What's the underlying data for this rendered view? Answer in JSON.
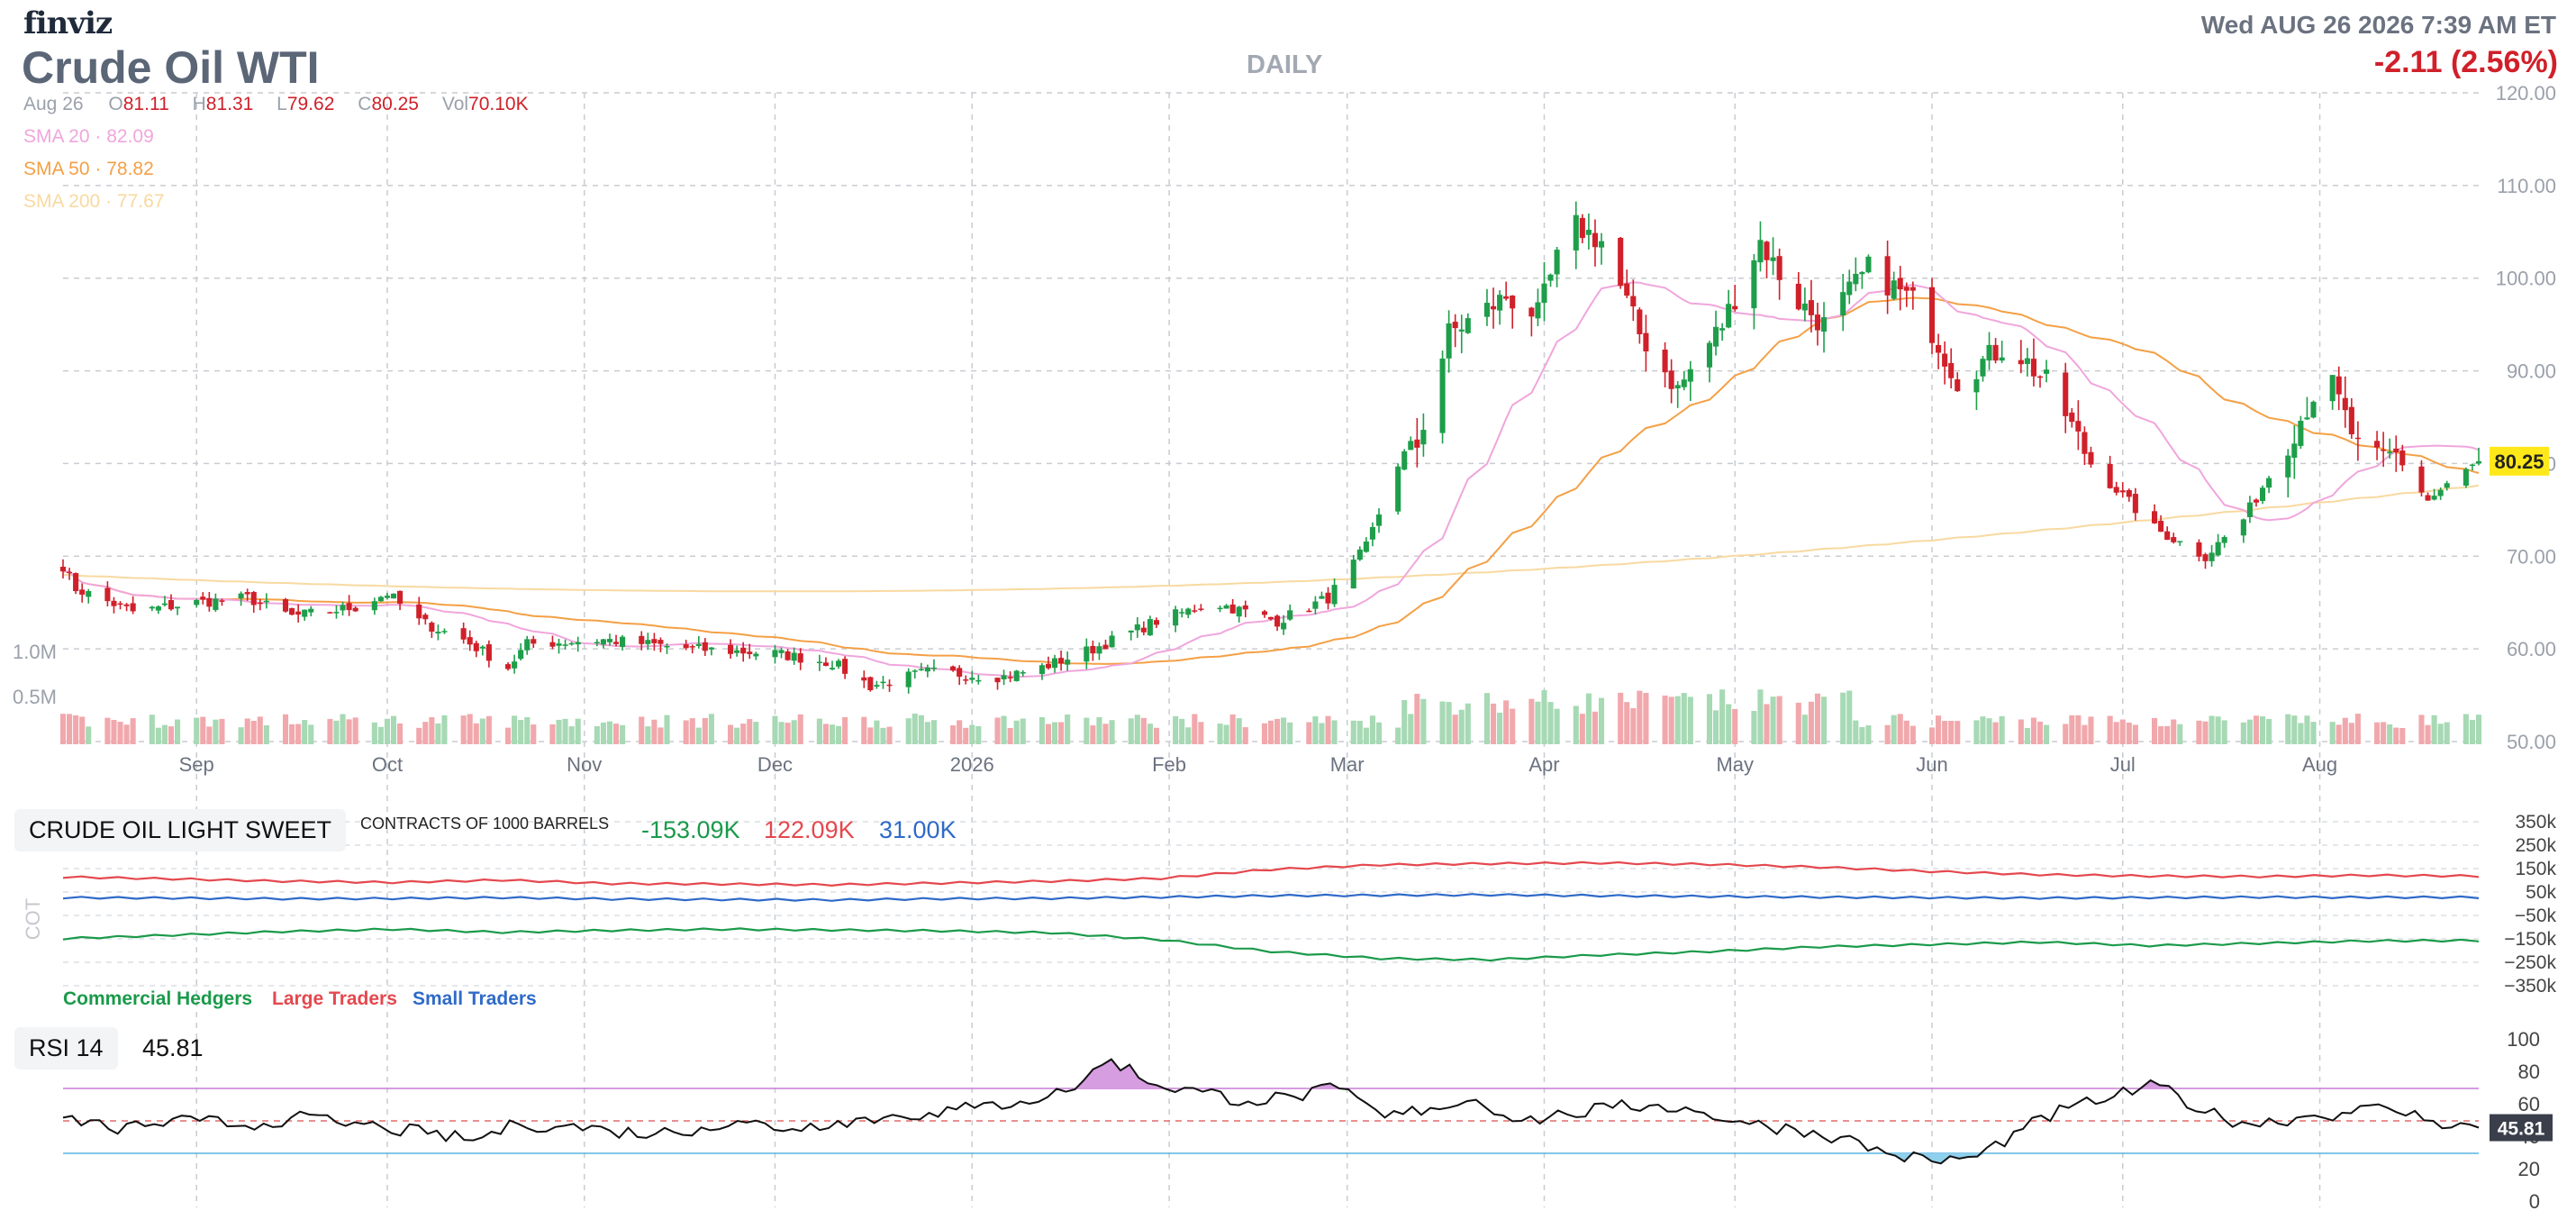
{
  "header": {
    "brand": "finviz",
    "title": "Crude Oil WTI",
    "period": "DAILY",
    "datetime": "Wed AUG 26 2026 7:39 AM ET",
    "change": "-2.11 (2.56%)"
  },
  "ohlc": {
    "date": "Aug 26",
    "open_key": "O",
    "open": "81.11",
    "high_key": "H",
    "high": "81.31",
    "low_key": "L",
    "low": "79.62",
    "close_key": "C",
    "close": "80.25",
    "vol_key": "Vol",
    "vol": "70.10K"
  },
  "sma": [
    {
      "label": "SMA 20",
      "value": "82.09",
      "color": "#f0a6dc"
    },
    {
      "label": "SMA 50",
      "value": "78.82",
      "color": "#f4a046"
    },
    {
      "label": "SMA 200",
      "value": "77.67",
      "color": "#f8d9a0"
    }
  ],
  "price_badge": "80.25",
  "cot": {
    "panel_label": "CRUDE OIL LIGHT SWEET",
    "contracts_label": "CONTRACTS OF 1000 BARRELS",
    "side_label": "COT",
    "commercial_value": "-153.09K",
    "large_value": "122.09K",
    "small_value": "31.00K",
    "legend": {
      "commercial": "Commercial Hedgers",
      "large": "Large Traders",
      "small": "Small Traders"
    },
    "colors": {
      "commercial": "#1a9a4a",
      "large": "#e4484e",
      "small": "#2f6ac8"
    }
  },
  "rsi": {
    "panel_label": "RSI 14",
    "value": "45.81",
    "badge": "45.81"
  },
  "colors": {
    "up": "#1e9e4a",
    "down": "#d0202a",
    "vol_up": "#a6d9b4",
    "vol_down": "#f1a8ac",
    "grid": "#c9ccd1",
    "badge_bg": "#ffe81a",
    "rsi_badge_bg": "#3a3f4b"
  },
  "chart_data": [
    {
      "type": "candlestick",
      "title": "Crude Oil WTI",
      "x_tick_labels": [
        "Sep",
        "Oct",
        "Nov",
        "Dec",
        "2026",
        "Feb",
        "Mar",
        "Apr",
        "May",
        "Jun",
        "Jul",
        "Aug"
      ],
      "y_tick_labels": [
        "120.00",
        "110.00",
        "100.00",
        "90.00",
        "80.00",
        "70.00",
        "60.00",
        "50.00"
      ],
      "ylim": [
        50,
        120
      ],
      "volume_tick_labels": [
        "1.0M",
        "0.5M"
      ],
      "grid": true,
      "anchors": [
        [
          "2025-08-11",
          69
        ],
        [
          "2025-08-13",
          66.5
        ],
        [
          "2025-08-22",
          64
        ],
        [
          "2025-09-01",
          65
        ],
        [
          "2025-09-09",
          65.5
        ],
        [
          "2025-09-16",
          63.5
        ],
        [
          "2025-09-26",
          64.5
        ],
        [
          "2025-10-01",
          66
        ],
        [
          "2025-10-06",
          63
        ],
        [
          "2025-10-13",
          61
        ],
        [
          "2025-10-20",
          58
        ],
        [
          "2025-10-23",
          60.5
        ],
        [
          "2025-11-04",
          61
        ],
        [
          "2025-11-18",
          60
        ],
        [
          "2025-12-01",
          59.5
        ],
        [
          "2025-12-10",
          58.5
        ],
        [
          "2025-12-16",
          56
        ],
        [
          "2025-12-25",
          57.5
        ],
        [
          "2026-01-06",
          57
        ],
        [
          "2026-01-12",
          58
        ],
        [
          "2026-01-20",
          60
        ],
        [
          "2026-01-30",
          63
        ],
        [
          "2026-02-08",
          65
        ],
        [
          "2026-02-18",
          63
        ],
        [
          "2026-02-26",
          65.5
        ],
        [
          "2026-03-04",
          71
        ],
        [
          "2026-03-09",
          80
        ],
        [
          "2026-03-12",
          82
        ],
        [
          "2026-03-17",
          94
        ],
        [
          "2026-03-26",
          98
        ],
        [
          "2026-03-31",
          96
        ],
        [
          "2026-04-05",
          106
        ],
        [
          "2026-04-10",
          104
        ],
        [
          "2026-04-16",
          94
        ],
        [
          "2026-04-22",
          88
        ],
        [
          "2026-04-29",
          95
        ],
        [
          "2026-05-05",
          104
        ],
        [
          "2026-05-10",
          98
        ],
        [
          "2026-05-15",
          95
        ],
        [
          "2026-05-22",
          101
        ],
        [
          "2026-05-30",
          97
        ],
        [
          "2026-06-05",
          89
        ],
        [
          "2026-06-13",
          93
        ],
        [
          "2026-06-20",
          88
        ],
        [
          "2026-06-26",
          80
        ],
        [
          "2026-07-06",
          73
        ],
        [
          "2026-07-14",
          70
        ],
        [
          "2026-07-20",
          74
        ],
        [
          "2026-07-26",
          81
        ],
        [
          "2026-08-02",
          90
        ],
        [
          "2026-08-08",
          80
        ],
        [
          "2026-08-13",
          81
        ],
        [
          "2026-08-18",
          76
        ],
        [
          "2026-08-26",
          80.25
        ]
      ],
      "sma_series": [
        {
          "name": "SMA 20",
          "last": 82.09
        },
        {
          "name": "SMA 50",
          "last": 78.82
        },
        {
          "name": "SMA 200",
          "last": 77.67
        }
      ]
    },
    {
      "type": "line",
      "title": "CRUDE OIL LIGHT SWEET",
      "y_tick_labels": [
        "350k",
        "250k",
        "150k",
        "50k",
        "−50k",
        "−150k",
        "−250k",
        "−350k"
      ],
      "ylim": [
        -350,
        350
      ],
      "series": [
        {
          "name": "Large Traders",
          "values": [
            118,
            110,
            100,
            95,
            105,
            90,
            88,
            85,
            92,
            100,
            112,
            150,
            170,
            175,
            178,
            172,
            160,
            142,
            128,
            122,
            120,
            125,
            122
          ]
        },
        {
          "name": "Small Traders",
          "values": [
            30,
            28,
            25,
            26,
            30,
            24,
            22,
            20,
            25,
            27,
            32,
            38,
            40,
            42,
            38,
            35,
            32,
            30,
            28,
            30,
            32,
            31,
            31
          ]
        },
        {
          "name": "Commercial Hedgers",
          "values": [
            -145,
            -130,
            -115,
            -105,
            -118,
            -110,
            -105,
            -108,
            -112,
            -120,
            -150,
            -200,
            -230,
            -235,
            -215,
            -200,
            -180,
            -170,
            -160,
            -175,
            -165,
            -155,
            -153
          ]
        }
      ]
    },
    {
      "type": "line",
      "title": "RSI 14",
      "y_tick_labels": [
        "100",
        "80",
        "60",
        "40",
        "20",
        "0"
      ],
      "ylim": [
        0,
        100
      ],
      "overbought": 70,
      "oversold": 30,
      "series": [
        {
          "name": "RSI 14",
          "values": [
            52,
            45,
            48,
            50,
            47,
            52,
            49,
            46,
            42,
            38,
            48,
            47,
            44,
            42,
            46,
            49,
            45,
            50,
            52,
            55,
            58,
            62,
            68,
            88,
            72,
            68,
            62,
            65,
            70,
            52,
            58,
            63,
            50,
            54,
            58,
            60,
            55,
            48,
            45,
            40,
            30,
            25,
            28,
            45,
            58,
            65,
            72,
            55,
            48,
            52,
            55,
            58,
            50,
            45.81
          ]
        }
      ]
    }
  ]
}
